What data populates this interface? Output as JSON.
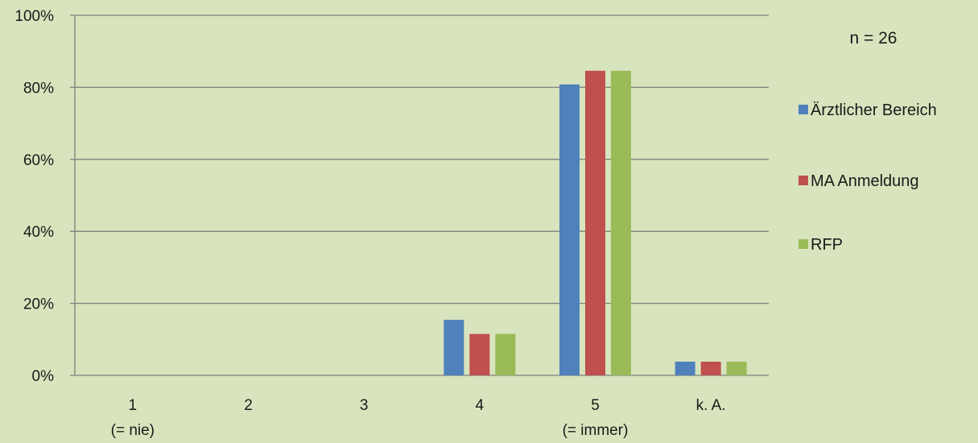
{
  "chart_data": {
    "type": "bar",
    "categories": [
      "1",
      "2",
      "3",
      "4",
      "5",
      "k. A."
    ],
    "category_sublabels": [
      "(= nie)",
      "",
      "",
      "",
      "(= immer)",
      ""
    ],
    "series": [
      {
        "name": "Ärztlicher Bereich",
        "color": "#4f81bd",
        "values": [
          0,
          0,
          0,
          15.4,
          80.8,
          3.8
        ]
      },
      {
        "name": "MA Anmeldung",
        "color": "#c0504d",
        "values": [
          0,
          0,
          0,
          11.5,
          84.6,
          3.8
        ]
      },
      {
        "name": "RFP",
        "color": "#9bbb59",
        "values": [
          0,
          0,
          0,
          11.5,
          84.6,
          3.8
        ]
      }
    ],
    "y_ticks": [
      "0%",
      "20%",
      "40%",
      "60%",
      "80%",
      "100%"
    ],
    "ylim": [
      0,
      100
    ],
    "grid": true,
    "legend_position": "right",
    "annotation": "n = 26"
  },
  "colors": {
    "background": "#d8e4bd",
    "gridline": "#7f7f7f"
  }
}
